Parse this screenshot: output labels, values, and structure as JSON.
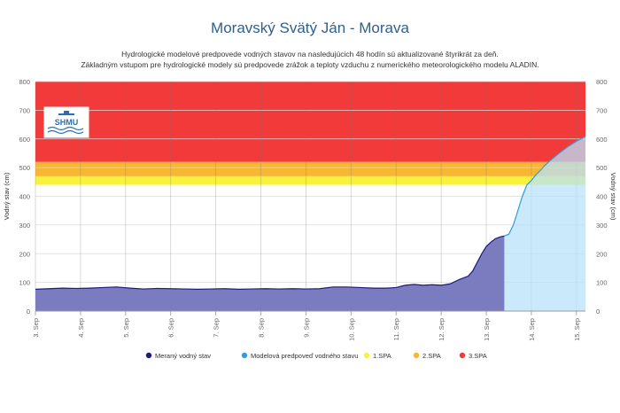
{
  "page": {
    "title": "Moravský Svätý Ján - Morava",
    "subtitle_line1": "Hydrologické modelové predpovede vodných stavov na nasledujúcich 48 hodín sú aktualizované štyrikrát za deň.",
    "subtitle_line2": "Základným vstupom pre hydrologické modely sú predpovede zrážok a teploty vzduchu z numerického meteorologického modelu ALADIN.",
    "logo_text": "SHMU"
  },
  "chart_data": {
    "type": "area",
    "title": "Moravský Svätý Ján - Morava",
    "ylabel_left": "Vodný stav (cm)",
    "ylabel_right": "Vodný stav (cm)",
    "ylim": [
      0,
      800
    ],
    "yticks": [
      0,
      100,
      200,
      300,
      400,
      500,
      600,
      700,
      800
    ],
    "xlim": [
      3.0,
      15.2
    ],
    "xticks": [
      "3. Sep",
      "4. Sep",
      "5. Sep",
      "6. Sep",
      "7. Sep",
      "8. Sep",
      "9. Sep",
      "10. Sep",
      "11. Sep",
      "12. Sep",
      "13. Sep",
      "14. Sep",
      "15. Sep"
    ],
    "grid": true,
    "legend_position": "bottom",
    "colors": {
      "measured_fill": "#7b7bbf",
      "measured_line": "#1c1c7a",
      "forecast_fill": "#b8e2f8",
      "forecast_line": "#2b9fe0",
      "spa1": "#f8f23a",
      "spa2": "#f7b733",
      "spa3": "#f23a3a"
    },
    "thresholds": [
      {
        "name": "1.SPA",
        "from": 440,
        "to": 470
      },
      {
        "name": "2.SPA",
        "from": 470,
        "to": 520
      },
      {
        "name": "3.SPA",
        "from": 520,
        "to": 800
      }
    ],
    "series": [
      {
        "name": "Meraný vodný stav",
        "x": [
          3.0,
          3.3,
          3.6,
          3.9,
          4.2,
          4.5,
          4.8,
          5.1,
          5.4,
          5.7,
          6.0,
          6.3,
          6.6,
          6.9,
          7.2,
          7.5,
          7.8,
          8.1,
          8.4,
          8.7,
          9.0,
          9.3,
          9.6,
          9.9,
          10.2,
          10.5,
          10.8,
          11.0,
          11.2,
          11.4,
          11.6,
          11.8,
          12.0,
          12.2,
          12.4,
          12.6,
          12.7,
          12.8,
          12.9,
          13.0,
          13.1,
          13.2,
          13.3,
          13.4
        ],
        "y": [
          76,
          78,
          80,
          79,
          80,
          82,
          84,
          80,
          77,
          79,
          78,
          77,
          76,
          77,
          78,
          76,
          77,
          78,
          77,
          78,
          77,
          78,
          84,
          84,
          82,
          80,
          80,
          82,
          90,
          93,
          90,
          92,
          90,
          95,
          110,
          122,
          140,
          170,
          200,
          225,
          240,
          252,
          258,
          262
        ]
      },
      {
        "name": "Modelová predpoveď vodného stavu",
        "x": [
          13.4,
          13.5,
          13.6,
          13.7,
          13.8,
          13.9,
          14.0,
          14.1,
          14.2,
          14.3,
          14.4,
          14.5,
          14.6,
          14.7,
          14.8,
          14.9,
          15.0,
          15.1,
          15.2
        ],
        "y": [
          262,
          268,
          300,
          350,
          400,
          440,
          455,
          475,
          490,
          508,
          522,
          535,
          548,
          560,
          572,
          582,
          592,
          600,
          608
        ]
      }
    ],
    "legend": [
      {
        "label": "Meraný vodný stav",
        "color": "#1c1c7a"
      },
      {
        "label": "Modelová predpoveď vodného stavu",
        "color": "#2b9fe0"
      },
      {
        "label": "1.SPA",
        "color": "#f8f23a"
      },
      {
        "label": "2.SPA",
        "color": "#f7b733"
      },
      {
        "label": "3.SPA",
        "color": "#f23a3a"
      }
    ]
  }
}
